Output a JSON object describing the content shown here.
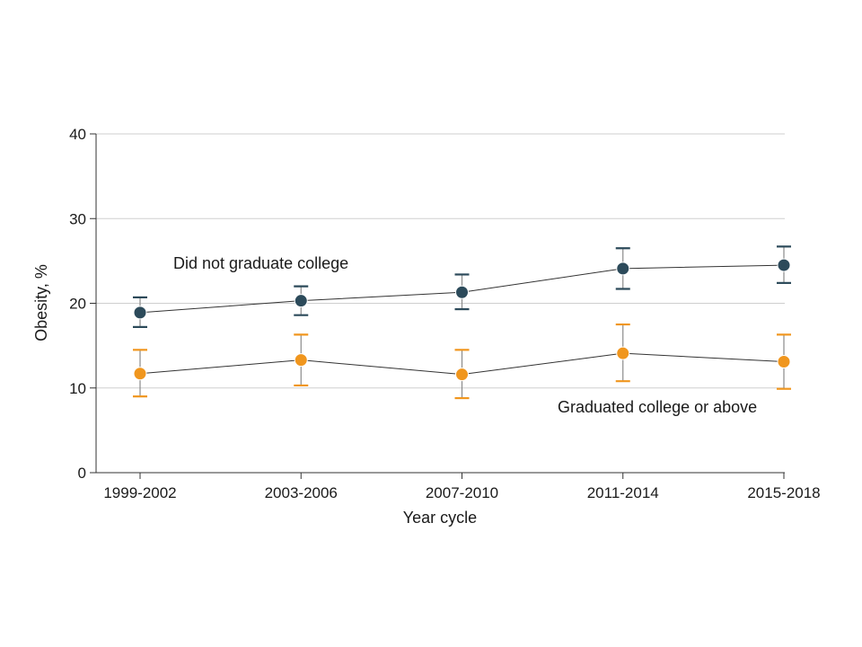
{
  "chart_data": {
    "type": "line",
    "title": "",
    "xlabel": "Year cycle",
    "ylabel": "Obesity, %",
    "categories": [
      "1999-2002",
      "2003-2006",
      "2007-2010",
      "2011-2014",
      "2015-2018"
    ],
    "ylim": [
      0,
      40
    ],
    "yticks": [
      0,
      10,
      20,
      30,
      40
    ],
    "grid": true,
    "legend": "none (series labeled directly on plot)",
    "series": [
      {
        "name": "Did not graduate college",
        "color": "#2c4a5a",
        "errorbar_color": "#2c4a5a",
        "values": [
          18.9,
          20.3,
          21.3,
          24.1,
          24.5
        ],
        "lower": [
          17.2,
          18.6,
          19.3,
          21.7,
          22.4
        ],
        "upper": [
          20.7,
          22.0,
          23.4,
          26.5,
          26.7
        ]
      },
      {
        "name": "Graduated college or above",
        "color": "#f0961e",
        "errorbar_color": "#f0961e",
        "values": [
          11.7,
          13.3,
          11.6,
          14.1,
          13.1
        ],
        "lower": [
          9.0,
          10.3,
          8.8,
          10.8,
          9.9
        ],
        "upper": [
          14.5,
          16.3,
          14.5,
          17.5,
          16.3
        ]
      }
    ]
  }
}
